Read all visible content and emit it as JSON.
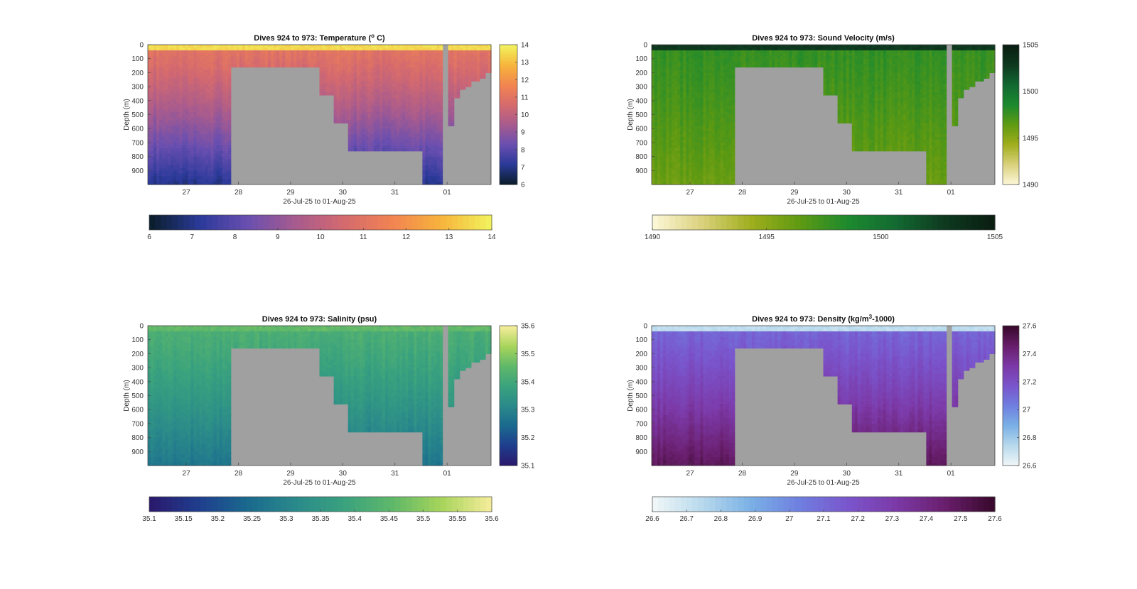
{
  "chart_data": [
    {
      "type": "heatmap",
      "title": "Dives 924 to 973: Temperature (",
      "title_sup": "o",
      "title_end": " C)",
      "xlabel": "26-Jul-25 to 01-Aug-25",
      "ylabel": "Depth (m)",
      "x_ticks": [
        "27",
        "28",
        "29",
        "30",
        "31",
        "01"
      ],
      "x_range": [
        "26-Jul-25",
        "01-Aug-25"
      ],
      "y_ticks": [
        0,
        100,
        200,
        300,
        400,
        500,
        600,
        700,
        800,
        900
      ],
      "ylim": [
        0,
        1000
      ],
      "y_reversed": true,
      "clim": [
        6,
        14
      ],
      "colorbar_vertical_ticks": [
        6,
        7,
        8,
        9,
        10,
        11,
        12,
        13,
        14
      ],
      "colorbar_horizontal_ticks": [
        6,
        7,
        8,
        9,
        10,
        11,
        12,
        13,
        14
      ],
      "colormap": [
        "#0b1e2e",
        "#2b3a9a",
        "#6a4fb0",
        "#a85b8e",
        "#d56a6e",
        "#f28452",
        "#f7b33b",
        "#f2f05c"
      ],
      "profile": {
        "surface": 13.6,
        "mixed_layer": 11.0,
        "deep": 7.0
      },
      "no_data_color": "#a0a0a0"
    },
    {
      "type": "heatmap",
      "title": "Dives 924 to 973: Sound Velocity (m/s)",
      "xlabel": "26-Jul-25 to 01-Aug-25",
      "ylabel": "Depth (m)",
      "x_ticks": [
        "27",
        "28",
        "29",
        "30",
        "31",
        "01"
      ],
      "x_range": [
        "26-Jul-25",
        "01-Aug-25"
      ],
      "y_ticks": [
        0,
        100,
        200,
        300,
        400,
        500,
        600,
        700,
        800,
        900
      ],
      "ylim": [
        0,
        1000
      ],
      "y_reversed": true,
      "clim": [
        1490,
        1505
      ],
      "colorbar_vertical_ticks": [
        1490,
        1495,
        1500,
        1505
      ],
      "colorbar_horizontal_ticks": [
        1490,
        1495,
        1500,
        1505
      ],
      "colormap": [
        "#fbf6d4",
        "#d9d07a",
        "#9fae1c",
        "#5f9a12",
        "#1c8a2e",
        "#136a32",
        "#0e3a20",
        "#0a1e12"
      ],
      "profile": {
        "surface": 1503.0,
        "mixed_layer": 1497.8,
        "deep": 1496.0
      },
      "no_data_color": "#a0a0a0"
    },
    {
      "type": "heatmap",
      "title": "Dives 924 to 973: Salinity (psu)",
      "xlabel": "26-Jul-25 to 01-Aug-25",
      "ylabel": "Depth (m)",
      "x_ticks": [
        "27",
        "28",
        "29",
        "30",
        "31",
        "01"
      ],
      "x_range": [
        "26-Jul-25",
        "01-Aug-25"
      ],
      "y_ticks": [
        0,
        100,
        200,
        300,
        400,
        500,
        600,
        700,
        800,
        900
      ],
      "ylim": [
        0,
        1000
      ],
      "y_reversed": true,
      "clim": [
        35.1,
        35.6
      ],
      "colorbar_vertical_ticks": [
        35.1,
        35.2,
        35.3,
        35.4,
        35.5,
        35.6
      ],
      "colorbar_horizontal_ticks": [
        35.1,
        35.15,
        35.2,
        35.25,
        35.3,
        35.35,
        35.4,
        35.45,
        35.5,
        35.55,
        35.6
      ],
      "colormap": [
        "#2a1a6e",
        "#1f3f8e",
        "#1a6a8e",
        "#2a8a8a",
        "#3aa27e",
        "#5fb86a",
        "#a6d45a",
        "#f2ec98"
      ],
      "profile": {
        "surface": 35.46,
        "mixed_layer": 35.42,
        "deep": 35.27
      },
      "no_data_color": "#a0a0a0"
    },
    {
      "type": "heatmap",
      "title": "Dives 924 to 973: Density (kg/m",
      "title_sup": "3",
      "title_end": "-1000)",
      "xlabel": "26-Jul-25 to 01-Aug-25",
      "ylabel": "Depth (m)",
      "x_ticks": [
        "27",
        "28",
        "29",
        "30",
        "31",
        "01"
      ],
      "x_range": [
        "26-Jul-25",
        "01-Aug-25"
      ],
      "y_ticks": [
        0,
        100,
        200,
        300,
        400,
        500,
        600,
        700,
        800,
        900
      ],
      "ylim": [
        0,
        1000
      ],
      "y_reversed": true,
      "clim": [
        26.6,
        27.6
      ],
      "colorbar_vertical_ticks": [
        "26.6",
        "26.8",
        "27",
        "27.2",
        "27.4",
        "27.6"
      ],
      "colorbar_horizontal_ticks": [
        "26.6",
        "26.7",
        "26.8",
        "26.9",
        "27",
        "27.1",
        "27.2",
        "27.3",
        "27.4",
        "27.5",
        "27.6"
      ],
      "colormap": [
        "#eef6f8",
        "#b6d8ec",
        "#7ab0e6",
        "#6f7fe0",
        "#7a55cc",
        "#7c3aa8",
        "#6a1f6e",
        "#3a0a2e"
      ],
      "profile": {
        "surface": 26.72,
        "mixed_layer": 27.12,
        "deep": 27.5
      },
      "no_data_color": "#a0a0a0"
    }
  ]
}
